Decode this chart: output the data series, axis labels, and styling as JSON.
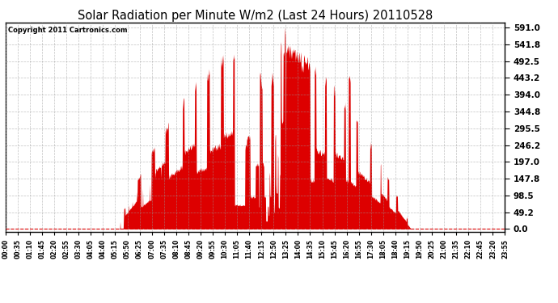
{
  "title": "Solar Radiation per Minute W/m2 (Last 24 Hours) 20110528",
  "copyright": "Copyright 2011 Cartronics.com",
  "y_ticks": [
    0.0,
    49.2,
    98.5,
    147.8,
    197.0,
    246.2,
    295.5,
    344.8,
    394.0,
    443.2,
    492.5,
    541.8,
    591.0
  ],
  "y_max": 605,
  "y_min": -8,
  "background_color": "#ffffff",
  "fill_color": "#dd0000",
  "grid_color": "#999999",
  "title_color": "#000000",
  "copyright_color": "#000000",
  "baseline_color": "#dd0000",
  "x_labels": [
    "00:00",
    "00:35",
    "01:10",
    "01:45",
    "02:20",
    "02:55",
    "03:30",
    "04:05",
    "04:40",
    "05:15",
    "05:50",
    "06:25",
    "07:00",
    "07:35",
    "08:10",
    "08:45",
    "09:20",
    "09:55",
    "10:30",
    "11:05",
    "11:40",
    "12:15",
    "12:50",
    "13:25",
    "14:00",
    "14:35",
    "15:10",
    "15:45",
    "16:20",
    "16:55",
    "17:30",
    "18:05",
    "18:40",
    "19:15",
    "19:50",
    "20:25",
    "21:00",
    "21:35",
    "22:10",
    "22:45",
    "23:20",
    "23:55"
  ]
}
